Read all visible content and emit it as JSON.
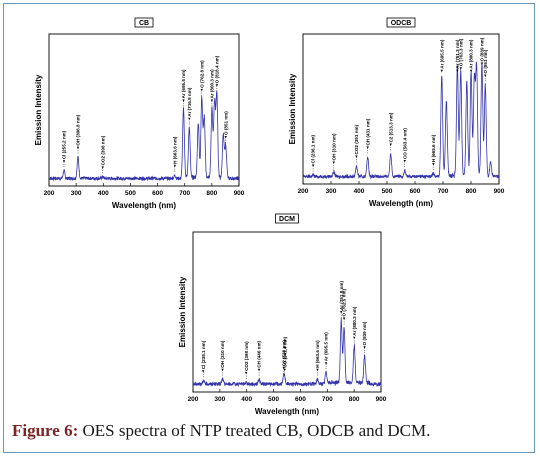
{
  "caption": {
    "figure_label": "Figure 6:",
    "text": "OES spectra of NTP treated CB, ODCB and DCM."
  },
  "colors": {
    "trace": "#3333aa",
    "caption_label": "#7b2525",
    "frame": "#6f9bbb"
  },
  "chart_data": [
    {
      "type": "line",
      "title": "CB",
      "xlabel": "Wavelength (nm)",
      "ylabel": "Emission Intensity",
      "xlim": [
        200,
        900
      ],
      "ylim": [
        0,
        1
      ],
      "xticks": [
        200,
        300,
        400,
        500,
        600,
        700,
        800,
        900
      ],
      "baseline": 0.05,
      "peaks": [
        {
          "x": 255.2,
          "y": 0.1,
          "label": "Cl (255.2 nm)"
        },
        {
          "x": 306.8,
          "y": 0.19,
          "label": "OH (306.8 nm)"
        },
        {
          "x": 398,
          "y": 0.06,
          "label": "CO2 (398 nm)"
        },
        {
          "x": 663.6,
          "y": 0.07,
          "label": "H (663.6 nm)"
        },
        {
          "x": 695.5,
          "y": 0.5,
          "label": "Ar (695.5 nm)"
        },
        {
          "x": 716.8,
          "y": 0.38,
          "label": "Ar (716.8 nm)"
        },
        {
          "x": 750,
          "y": 0.41,
          "label": ""
        },
        {
          "x": 762.8,
          "y": 0.57,
          "label": "O (762.8 nm)"
        },
        {
          "x": 772,
          "y": 0.45,
          "label": ""
        },
        {
          "x": 800.3,
          "y": 0.5,
          "label": "Ar (800.3 nm)"
        },
        {
          "x": 810,
          "y": 0.55,
          "label": ""
        },
        {
          "x": 818.4,
          "y": 0.6,
          "label": "O (818.4 nm)"
        },
        {
          "x": 842,
          "y": 0.33,
          "label": ""
        },
        {
          "x": 851,
          "y": 0.26,
          "label": "O (851 nm)"
        }
      ]
    },
    {
      "type": "line",
      "title": "ODCB",
      "xlabel": "Wavelength (nm)",
      "ylabel": "Emission Intensity",
      "xlim": [
        200,
        900
      ],
      "ylim": [
        0,
        1
      ],
      "xticks": [
        200,
        300,
        400,
        500,
        600,
        700,
        800,
        900
      ],
      "baseline": 0.05,
      "peaks": [
        {
          "x": 236.1,
          "y": 0.06,
          "label": "Cl (236.1 nm)"
        },
        {
          "x": 310,
          "y": 0.08,
          "label": "OH (310 nm)"
        },
        {
          "x": 391,
          "y": 0.12,
          "label": "CO2 (391 nm)"
        },
        {
          "x": 431,
          "y": 0.18,
          "label": "CH (431 nm)"
        },
        {
          "x": 513.3,
          "y": 0.2,
          "label": "C2 (513.3 nm)"
        },
        {
          "x": 563.4,
          "y": 0.09,
          "label": "CO (563.4 nm)"
        },
        {
          "x": 665.6,
          "y": 0.07,
          "label": "H (665.6 nm)"
        },
        {
          "x": 695.5,
          "y": 0.72,
          "label": "Ar (695.5 nm)"
        },
        {
          "x": 712,
          "y": 0.55,
          "label": ""
        },
        {
          "x": 751.3,
          "y": 0.78,
          "label": "Ar (751.3 nm)"
        },
        {
          "x": 763.3,
          "y": 0.75,
          "label": "O (763.3 nm)"
        },
        {
          "x": 785,
          "y": 0.68,
          "label": ""
        },
        {
          "x": 800.3,
          "y": 0.75,
          "label": "Ar (800.3 nm)"
        },
        {
          "x": 812,
          "y": 0.7,
          "label": ""
        },
        {
          "x": 820,
          "y": 0.78,
          "label": ""
        },
        {
          "x": 839,
          "y": 0.8,
          "label": "O (839 nm)"
        },
        {
          "x": 851,
          "y": 0.66,
          "label": "O (851 nm)"
        },
        {
          "x": 870,
          "y": 0.15,
          "label": ""
        }
      ]
    },
    {
      "type": "line",
      "title": "DCM",
      "xlabel": "Wavelength (nm)",
      "ylabel": "Emission Intensity",
      "xlim": [
        200,
        900
      ],
      "ylim": [
        0,
        1
      ],
      "xticks": [
        200,
        300,
        400,
        500,
        600,
        700,
        800,
        900
      ],
      "baseline": 0.05,
      "peaks": [
        {
          "x": 238.1,
          "y": 0.07,
          "label": "Cl (238.1 nm)"
        },
        {
          "x": 310,
          "y": 0.08,
          "label": "OH (310 nm)"
        },
        {
          "x": 398,
          "y": 0.06,
          "label": "CO2 (398 nm)"
        },
        {
          "x": 446,
          "y": 0.08,
          "label": "CH (446 nm)"
        },
        {
          "x": 538,
          "y": 0.09,
          "label": "C2 (538 nm)"
        },
        {
          "x": 541.4,
          "y": 0.08,
          "label": "CO (541.4 nm)"
        },
        {
          "x": 663.6,
          "y": 0.08,
          "label": "H (663.6 nm)"
        },
        {
          "x": 695.5,
          "y": 0.12,
          "label": "Ar (695.5 nm)"
        },
        {
          "x": 751.8,
          "y": 0.44,
          "label": "Ar (751.8 nm)"
        },
        {
          "x": 762.5,
          "y": 0.4,
          "label": "O (762.5 nm)"
        },
        {
          "x": 800.3,
          "y": 0.28,
          "label": "Ar (800.3 nm)"
        },
        {
          "x": 839,
          "y": 0.22,
          "label": "O (839 nm)"
        }
      ]
    }
  ]
}
